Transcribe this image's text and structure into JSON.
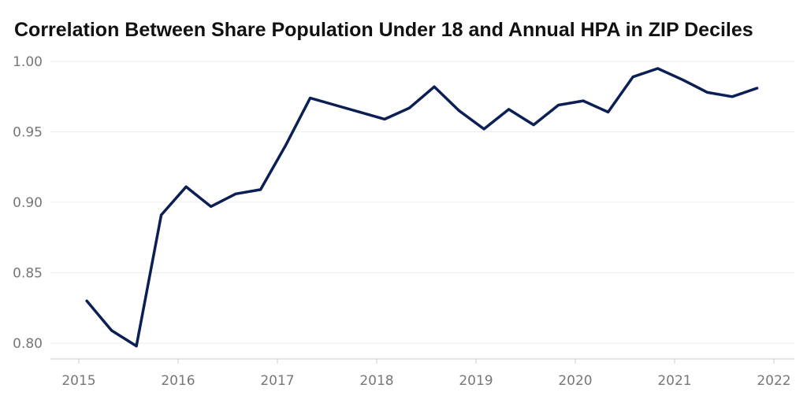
{
  "chart_data": {
    "type": "line",
    "title": "Correlation Between Share Population Under 18 and Annual HPA in ZIP Deciles",
    "xlabel": "",
    "ylabel": "",
    "ylim": [
      0.79,
      1.005
    ],
    "xlim": [
      2014.7,
      2022.2
    ],
    "y_ticks": [
      "0.80",
      "0.85",
      "0.90",
      "0.95",
      "1.00"
    ],
    "x_ticks": [
      "2015",
      "2016",
      "2017",
      "2018",
      "2019",
      "2020",
      "2021",
      "2022"
    ],
    "grid": "horizontal",
    "line_color": "#0b1f55",
    "series": [
      {
        "x": [
          2015.08,
          2015.33,
          2015.58,
          2015.83,
          2016.08,
          2016.33,
          2016.58,
          2016.83,
          2017.08,
          2017.33,
          2017.58,
          2017.83,
          2018.08,
          2018.33,
          2018.58,
          2018.83,
          2019.08,
          2019.33,
          2019.58,
          2019.83,
          2020.08,
          2020.33,
          2020.58,
          2020.83,
          2021.08,
          2021.33,
          2021.58,
          2021.83
        ],
        "y": [
          0.83,
          0.809,
          0.798,
          0.891,
          0.911,
          0.897,
          0.906,
          0.909,
          0.94,
          0.974,
          0.969,
          0.964,
          0.959,
          0.967,
          0.982,
          0.965,
          0.952,
          0.966,
          0.955,
          0.969,
          0.972,
          0.964,
          0.989,
          0.995,
          0.987,
          0.978,
          0.975,
          0.981
        ]
      }
    ]
  }
}
